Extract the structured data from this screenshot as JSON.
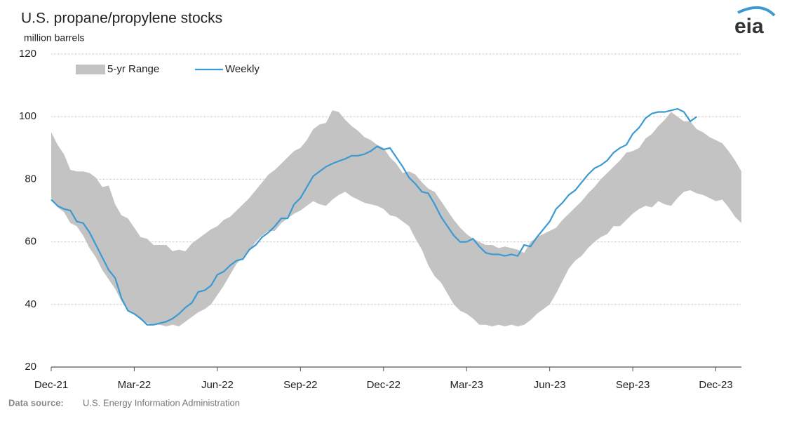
{
  "chart_data": {
    "type": "band_line",
    "title": "U.S. propane/propylene stocks",
    "y_label": "million barrels",
    "source_label": "Data source:",
    "source": "U.S. Energy Information Administration",
    "logo": "eia",
    "ylim": [
      20,
      120
    ],
    "yticks": [
      20,
      40,
      60,
      80,
      100,
      120
    ],
    "grid": true,
    "legend": "top-left",
    "categories": [
      "Dec-21",
      null,
      null,
      null,
      null,
      null,
      null,
      null,
      null,
      null,
      null,
      null,
      null,
      "Mar-22",
      null,
      null,
      null,
      null,
      null,
      null,
      null,
      null,
      null,
      null,
      null,
      null,
      "Jun-22",
      null,
      null,
      null,
      null,
      null,
      null,
      null,
      null,
      null,
      null,
      null,
      null,
      "Sep-22",
      null,
      null,
      null,
      null,
      null,
      null,
      null,
      null,
      null,
      null,
      null,
      null,
      "Dec-22",
      null,
      null,
      null,
      null,
      null,
      null,
      null,
      null,
      null,
      null,
      null,
      null,
      "Mar-23",
      null,
      null,
      null,
      null,
      null,
      null,
      null,
      null,
      null,
      null,
      null,
      null,
      "Jun-23",
      null,
      null,
      null,
      null,
      null,
      null,
      null,
      null,
      null,
      null,
      null,
      null,
      "Sep-23",
      null,
      null,
      null,
      null,
      null,
      null,
      null,
      null,
      null,
      null,
      null,
      null,
      "Dec-23",
      null,
      null,
      null,
      null
    ],
    "band": {
      "name": "5-yr Range",
      "color": "#c3c3c3",
      "high": [
        95,
        91,
        88,
        83,
        82.5,
        82.5,
        82,
        80.5,
        77.5,
        78,
        72,
        68.5,
        67.5,
        64.5,
        61.5,
        61,
        59,
        59,
        59,
        57,
        57.5,
        57,
        59.5,
        61,
        62.5,
        64,
        65,
        67,
        68,
        70,
        72,
        74,
        76.5,
        79,
        81.5,
        83,
        85,
        87,
        89,
        90,
        92.5,
        96,
        97.5,
        98,
        102,
        101.5,
        99,
        97,
        95.5,
        93.5,
        92.5,
        91,
        90,
        87,
        85,
        82,
        82.5,
        81.5,
        79,
        77,
        76,
        73,
        70,
        67,
        64.5,
        62.5,
        61,
        60,
        59,
        59,
        58,
        58.5,
        58,
        57.5,
        56.5,
        60,
        61.5,
        62.5,
        63.5,
        64.5,
        67,
        69,
        71,
        73,
        75.5,
        77.5,
        80,
        82,
        84,
        86,
        88.5,
        89,
        90,
        93,
        94.5,
        97,
        99,
        101.5,
        100,
        98.5,
        98.5,
        96,
        95,
        93.5,
        92.5,
        91.5,
        89,
        86,
        82.5
      ],
      "low": [
        74,
        71,
        69.5,
        66,
        65,
        62,
        58,
        55,
        51,
        48,
        45,
        41,
        38,
        37,
        35,
        34,
        33.5,
        33.5,
        33,
        33.5,
        33,
        34.5,
        36,
        37.5,
        38.5,
        40,
        43,
        46,
        49.5,
        53,
        55,
        57,
        60,
        62,
        63.5,
        63.5,
        66,
        67.5,
        69,
        70,
        71.5,
        73,
        72,
        71.5,
        73.5,
        75,
        76,
        74.5,
        73.5,
        72.5,
        72,
        71.5,
        70.5,
        68.5,
        68,
        66.5,
        65,
        61,
        57.5,
        52.5,
        49,
        47,
        43.5,
        40,
        38,
        37,
        35.5,
        33.5,
        33.5,
        33,
        33.5,
        33,
        33.5,
        33,
        33.5,
        35,
        37,
        38.5,
        40,
        43.5,
        47.5,
        51.5,
        54,
        55.5,
        58,
        60,
        61.5,
        62.5,
        65,
        65,
        67,
        69,
        70.5,
        71.5,
        71,
        73,
        72,
        71.5,
        74,
        76,
        76.5,
        75.5,
        75,
        74,
        73,
        73.5,
        71,
        68,
        66
      ]
    },
    "series": [
      {
        "name": "Weekly",
        "color": "#3b9ad2",
        "values": [
          73.5,
          71.5,
          70.5,
          70,
          66.5,
          66,
          63,
          59,
          55,
          51,
          48.5,
          42,
          38,
          37,
          35.5,
          33.5,
          33.5,
          34,
          34.5,
          35.5,
          37,
          39,
          40.5,
          44,
          44.5,
          46,
          49.5,
          50.5,
          52.5,
          54,
          54.5,
          57.5,
          59,
          61.5,
          63,
          65,
          67.5,
          67.5,
          72,
          74,
          77.5,
          81,
          82.5,
          84,
          85,
          85.8,
          86.5,
          87.5,
          87.5,
          88,
          89,
          90.5,
          89.5,
          90,
          87,
          84,
          80.5,
          78.5,
          76,
          75.5,
          72,
          68,
          65,
          62,
          60,
          60,
          61,
          58.5,
          56.5,
          56,
          56,
          55.5,
          56,
          55.5,
          59,
          58.5,
          61.5,
          64,
          66.5,
          70.5,
          72.5,
          75,
          76.5,
          79,
          81.5,
          83.5,
          84.5,
          86,
          88.5,
          90,
          91,
          94.5,
          96.5,
          99.5,
          101,
          101.5,
          101.5,
          102,
          102.5,
          101.5,
          98.5,
          100,
          null,
          null,
          null,
          null,
          null,
          null,
          null
        ]
      }
    ]
  }
}
